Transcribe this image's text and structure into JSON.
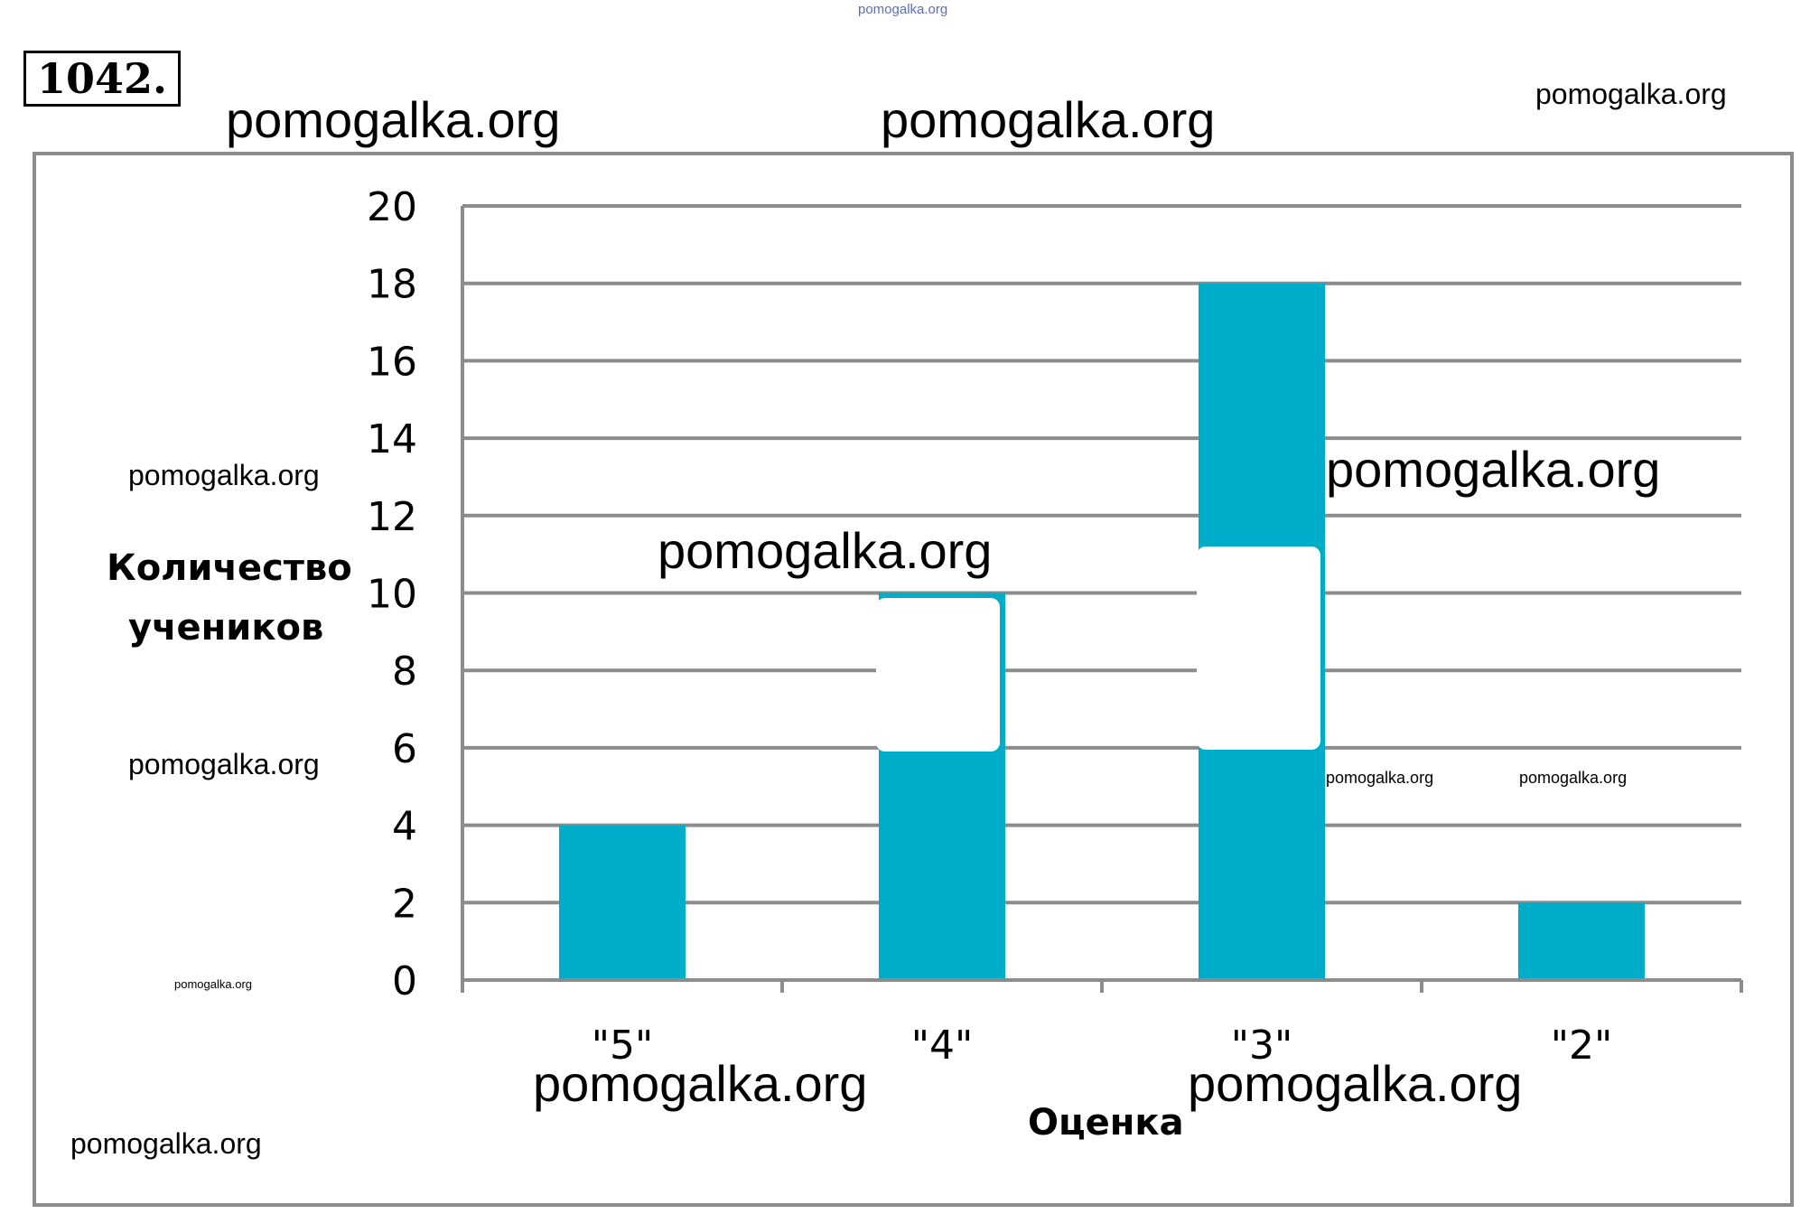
{
  "problem_number": "1042.",
  "watermarks": {
    "top_tiny": "pomogalka.org",
    "header_left": "pomogalka.org",
    "header_center": "pomogalka.org",
    "header_right": "pomogalka.org",
    "mid_left_1": "pomogalka.org",
    "mid_left_2": "pomogalka.org",
    "bottom_left_small": "pomogalka.org",
    "bottom_left": "pomogalka.org",
    "over_bar_4": "pomogalka.org",
    "right_of_bar_3": "pomogalka.org",
    "small_right_1": "pomogalka.org",
    "small_right_2": "pomogalka.org",
    "xaxis_left": "pomogalka.org",
    "xaxis_right": "pomogalka.org"
  },
  "colors": {
    "bar": "#00adc8",
    "grid": "#8c8c8c",
    "frame": "#8c8c8c"
  },
  "chart_data": {
    "type": "bar",
    "categories": [
      "\"5\"",
      "\"4\"",
      "\"3\"",
      "\"2\""
    ],
    "values": [
      4,
      10,
      18,
      2
    ],
    "xlabel": "Оценка",
    "ylabel_lines": [
      "Количество",
      "учеников"
    ],
    "ylim": [
      0,
      20
    ],
    "yticks": [
      0,
      2,
      4,
      6,
      8,
      10,
      12,
      14,
      16,
      18,
      20
    ],
    "grid": true,
    "legend": "none"
  }
}
